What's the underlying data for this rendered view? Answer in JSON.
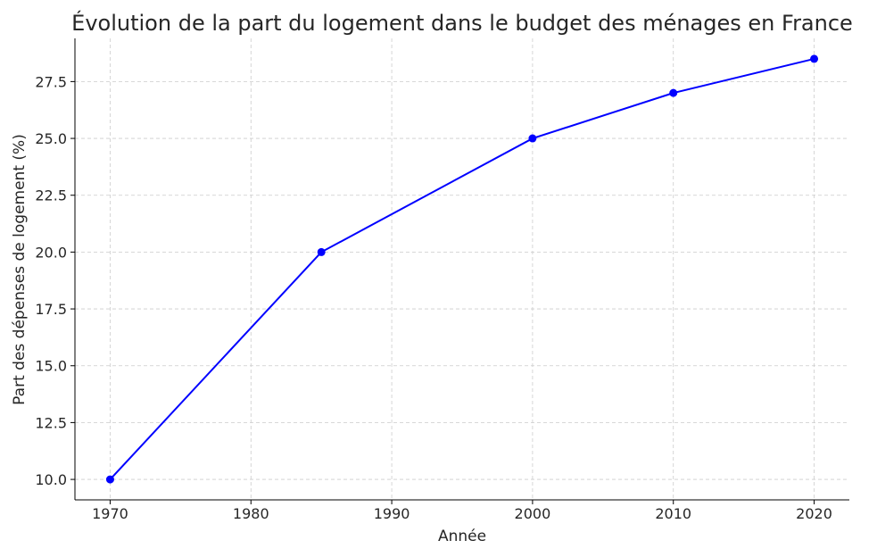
{
  "chart_data": {
    "type": "line",
    "title": "Évolution de la part du logement dans le budget des ménages en France",
    "xlabel": "Année",
    "ylabel": "Part des dépenses de logement (%)",
    "x": [
      1970,
      1985,
      2000,
      2010,
      2020
    ],
    "series": [
      {
        "values": [
          10.0,
          20.0,
          25.0,
          27.0,
          28.5
        ]
      }
    ],
    "xlim": [
      1967.5,
      2022.5
    ],
    "ylim": [
      9.1,
      29.4
    ],
    "xticks": [
      1970,
      1980,
      1990,
      2000,
      2010,
      2020
    ],
    "xtick_labels": [
      "1970",
      "1980",
      "1990",
      "2000",
      "2010",
      "2020"
    ],
    "yticks": [
      10.0,
      12.5,
      15.0,
      17.5,
      20.0,
      22.5,
      25.0,
      27.5
    ],
    "ytick_labels": [
      "10.0",
      "12.5",
      "15.0",
      "17.5",
      "20.0",
      "22.5",
      "25.0",
      "27.5"
    ],
    "grid": true,
    "line_color": "#0000ff",
    "marker": "circle"
  }
}
